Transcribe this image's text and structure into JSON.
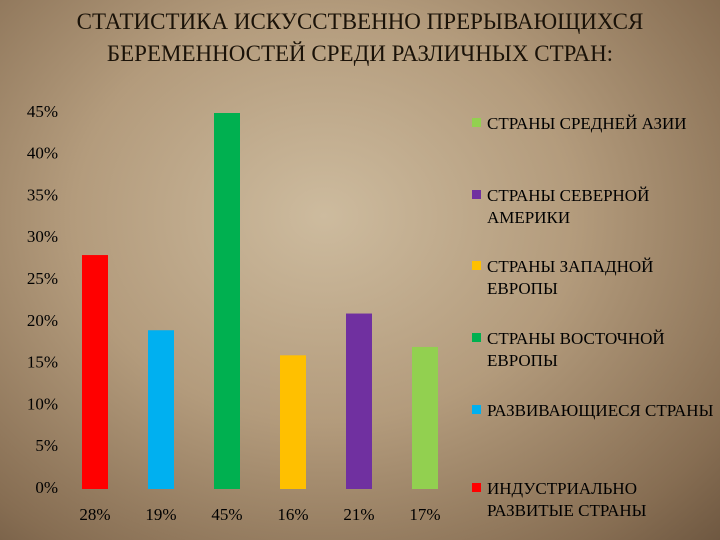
{
  "chart_data": {
    "type": "bar",
    "title": "СТАТИСТИКА ИСКУССТВЕННО ПРЕРЫВАЮЩИХСЯ БЕРЕМЕННОСТЕЙ СРЕДИ РАЗЛИЧНЫХ СТРАН:",
    "series": [
      {
        "name": "ИНДУСТРИАЛЬНО РАЗВИТЫЕ СТРАНЫ",
        "color": "#ff0000",
        "values": [
          28
        ],
        "value_labels": [
          "28%"
        ]
      },
      {
        "name": "РАЗВИВАЮЩИЕСЯ СТРАНЫ",
        "color": "#00b0f0",
        "values": [
          19
        ],
        "value_labels": [
          "19%"
        ]
      },
      {
        "name": "СТРАНЫ ВОСТОЧНОЙ ЕВРОПЫ",
        "color": "#00b050",
        "values": [
          45
        ],
        "value_labels": [
          "45%"
        ]
      },
      {
        "name": "СТРАНЫ ЗАПАДНОЙ ЕВРОПЫ",
        "color": "#ffc000",
        "values": [
          16
        ],
        "value_labels": [
          "16%"
        ]
      },
      {
        "name": "СТРАНЫ СЕВЕРНОЙ АМЕРИКИ",
        "color": "#7030a0",
        "values": [
          21
        ],
        "value_labels": [
          "21%"
        ]
      },
      {
        "name": "СТРАНЫ СРЕДНЕЙ АЗИИ",
        "color": "#92d050",
        "values": [
          17
        ],
        "value_labels": [
          "17%"
        ]
      }
    ],
    "ylim": [
      0,
      45
    ],
    "yticks": [
      {
        "value": 0,
        "label": "0%"
      },
      {
        "value": 5,
        "label": "5%"
      },
      {
        "value": 10,
        "label": "10%"
      },
      {
        "value": 15,
        "label": "15%"
      },
      {
        "value": 20,
        "label": "20%"
      },
      {
        "value": 25,
        "label": "25%"
      },
      {
        "value": 30,
        "label": "30%"
      },
      {
        "value": 35,
        "label": "35%"
      },
      {
        "value": 40,
        "label": "40%"
      },
      {
        "value": 45,
        "label": "45%"
      }
    ],
    "grid": false,
    "legend": "right"
  }
}
